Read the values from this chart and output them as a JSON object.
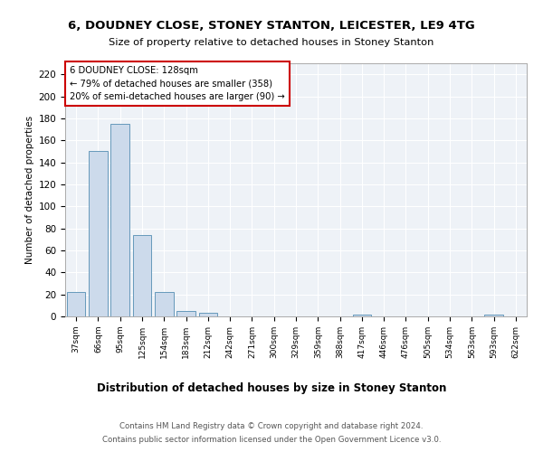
{
  "title1": "6, DOUDNEY CLOSE, STONEY STANTON, LEICESTER, LE9 4TG",
  "title2": "Size of property relative to detached houses in Stoney Stanton",
  "xlabel": "Distribution of detached houses by size in Stoney Stanton",
  "ylabel": "Number of detached properties",
  "footer1": "Contains HM Land Registry data © Crown copyright and database right 2024.",
  "footer2": "Contains public sector information licensed under the Open Government Licence v3.0.",
  "annotation_line1": "6 DOUDNEY CLOSE: 128sqm",
  "annotation_line2": "← 79% of detached houses are smaller (358)",
  "annotation_line3": "20% of semi-detached houses are larger (90) →",
  "bar_color": "#ccdaeb",
  "bar_edge_color": "#6699bb",
  "annotation_box_color": "#cc0000",
  "plot_bg_color": "#eef2f7",
  "grid_color": "#ffffff",
  "categories": [
    "37sqm",
    "66sqm",
    "95sqm",
    "125sqm",
    "154sqm",
    "183sqm",
    "212sqm",
    "242sqm",
    "271sqm",
    "300sqm",
    "329sqm",
    "359sqm",
    "388sqm",
    "417sqm",
    "446sqm",
    "476sqm",
    "505sqm",
    "534sqm",
    "563sqm",
    "593sqm",
    "622sqm"
  ],
  "values": [
    22,
    150,
    175,
    74,
    22,
    5,
    3,
    0,
    0,
    0,
    0,
    0,
    0,
    2,
    0,
    0,
    0,
    0,
    0,
    2,
    0
  ],
  "ylim": [
    0,
    230
  ],
  "yticks": [
    0,
    20,
    40,
    60,
    80,
    100,
    120,
    140,
    160,
    180,
    200,
    220
  ]
}
